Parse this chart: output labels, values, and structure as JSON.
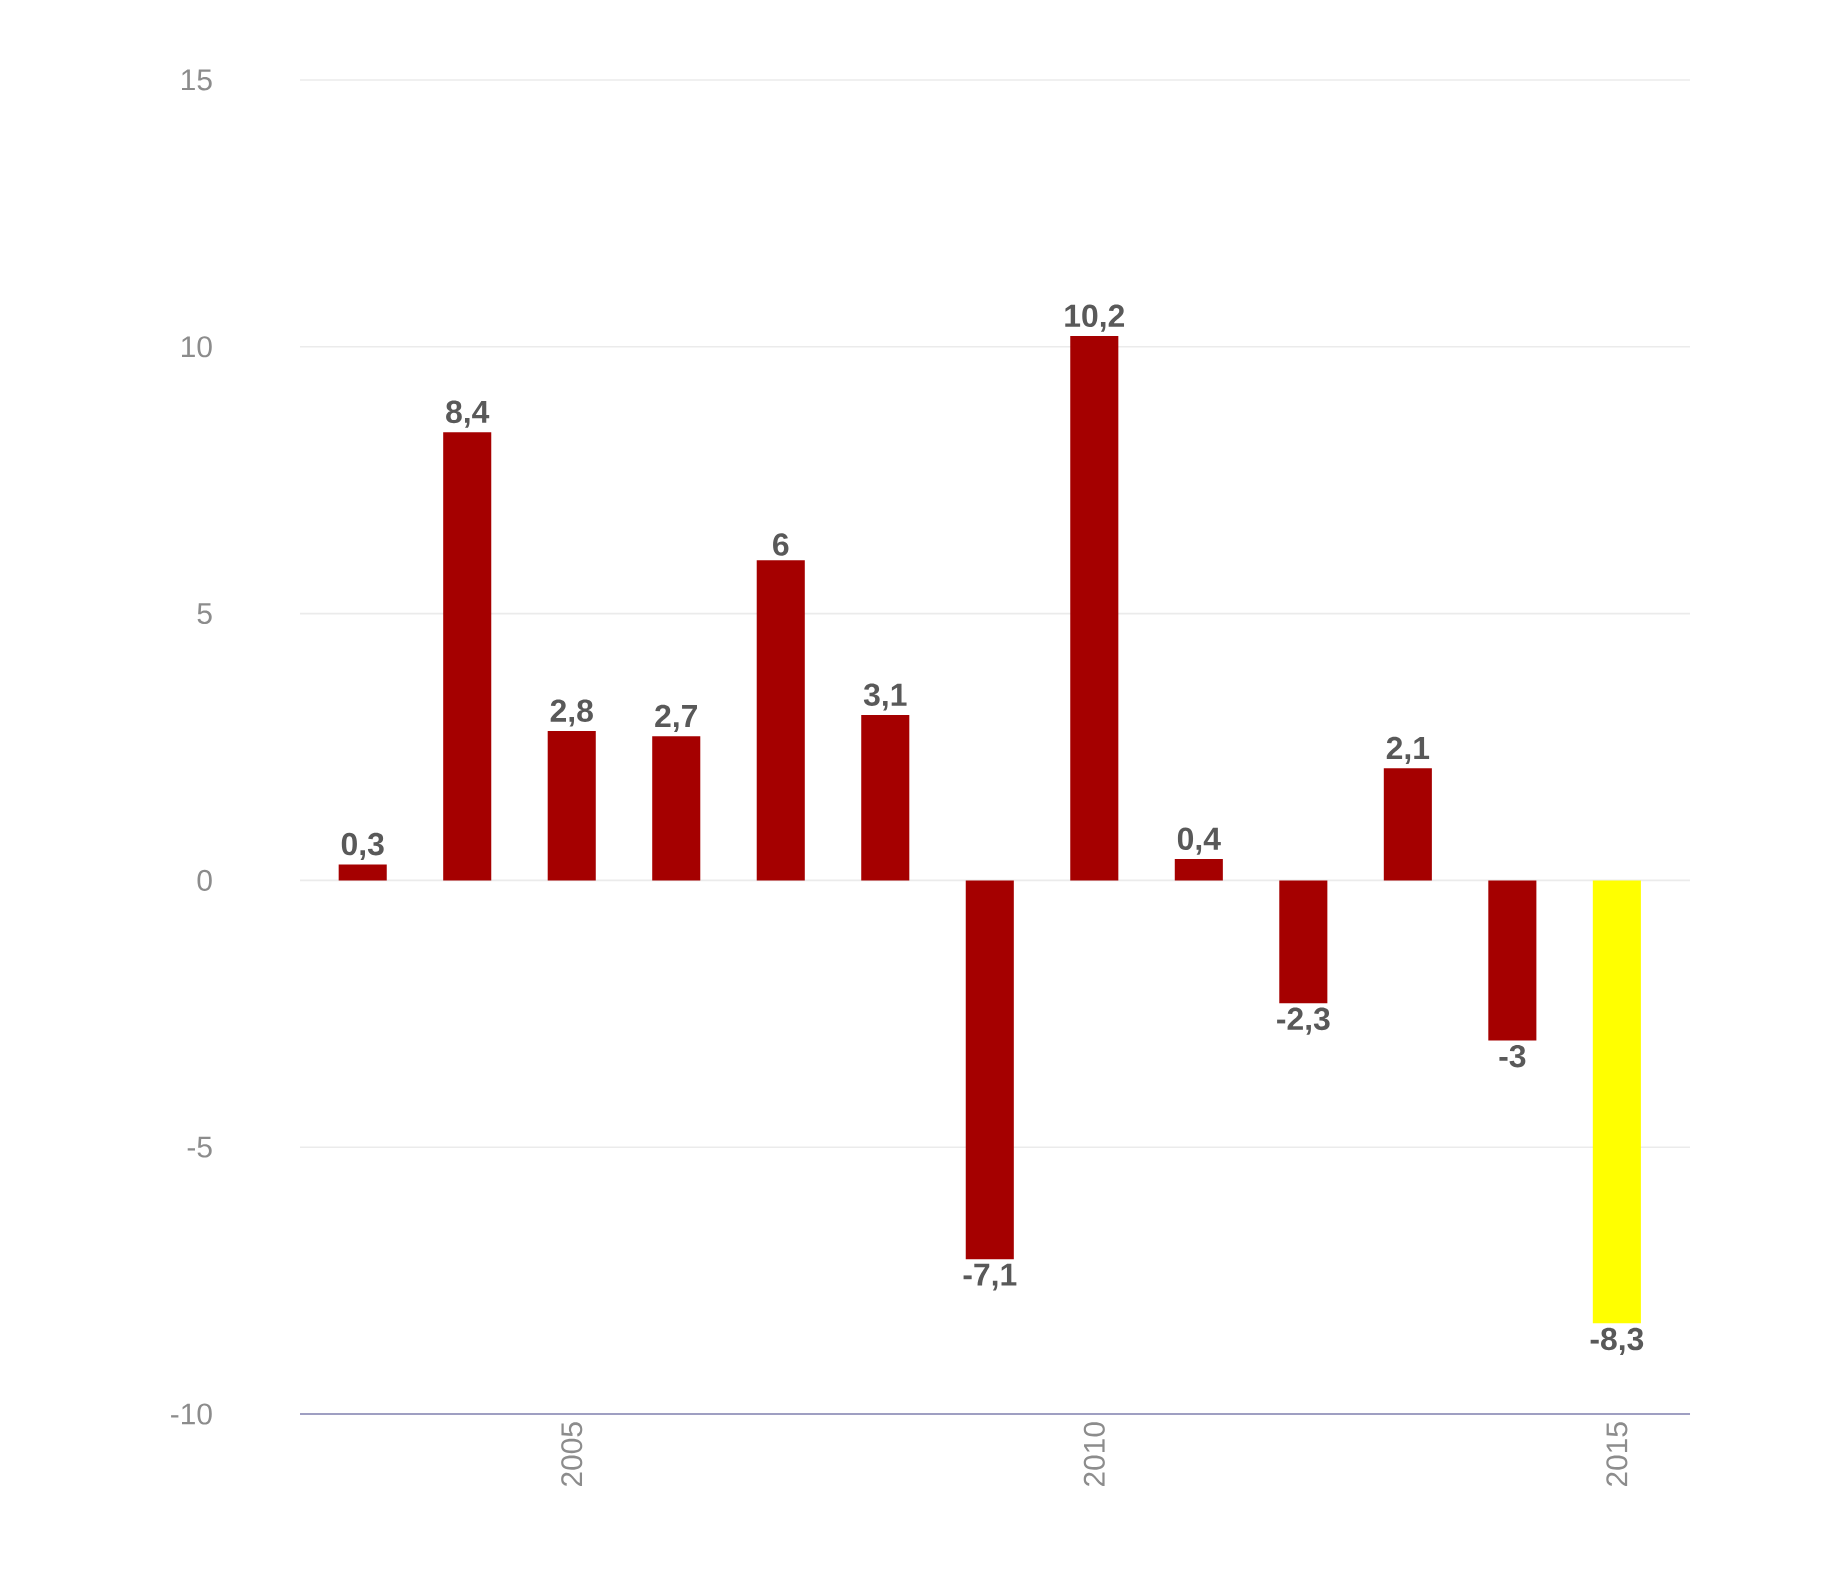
{
  "chart_data": {
    "type": "bar",
    "x": [
      2003,
      2004,
      2005,
      2006,
      2007,
      2008,
      2009,
      2010,
      2011,
      2012,
      2013,
      2014,
      2015
    ],
    "values": [
      0.3,
      8.4,
      2.8,
      2.7,
      6,
      3.1,
      -7.1,
      10.2,
      0.4,
      -2.3,
      2.1,
      -3,
      -8.3
    ],
    "value_labels": [
      "0,3",
      "8,4",
      "2,8",
      "2,7",
      "6",
      "3,1",
      "-7,1",
      "10,2",
      "0,4",
      "-2,3",
      "2,1",
      "-3",
      "-8,3"
    ],
    "colors": [
      "#a50000",
      "#a50000",
      "#a50000",
      "#a50000",
      "#a50000",
      "#a50000",
      "#a50000",
      "#a50000",
      "#a50000",
      "#a50000",
      "#a50000",
      "#a50000",
      "#ffff00"
    ],
    "xlim": [
      2002.4,
      2015.7
    ],
    "xticks": [
      2005,
      2010,
      2015
    ],
    "ylim": [
      -10,
      15
    ],
    "yticks": [
      -10,
      -5,
      0,
      5,
      10,
      15
    ],
    "grid": "y"
  }
}
